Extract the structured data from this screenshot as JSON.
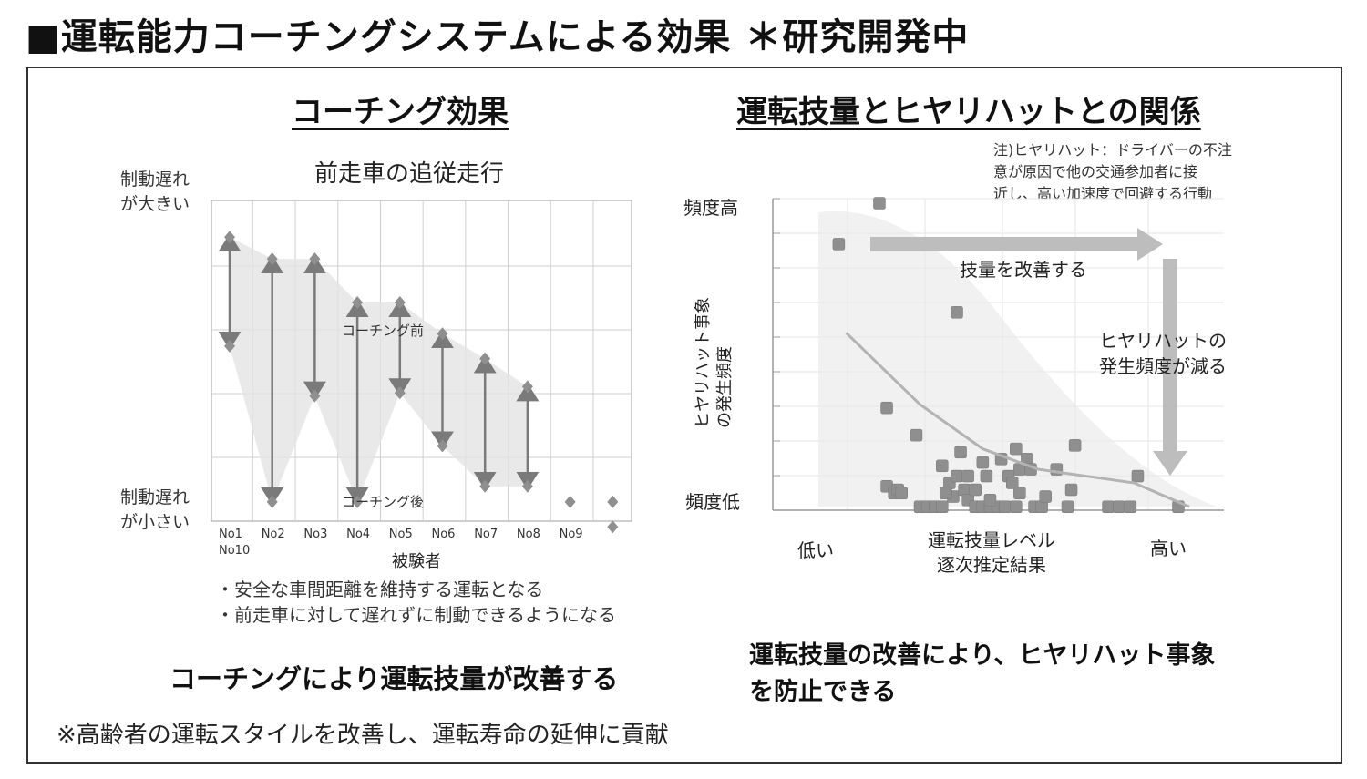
{
  "page_title": "■運転能力コーチングシステムによる効果 ＊研究開発中",
  "left": {
    "section_title": "コーチング効果",
    "chart_title": "前走車の追従走行",
    "y_top_label": [
      "制動遅れ",
      "が大きい"
    ],
    "y_bottom_label": [
      "制動遅れ",
      "が小さい"
    ],
    "before_label": "コーチング前",
    "after_label": "コーチング後",
    "x_axis_title": "被験者",
    "bullets": [
      "・安全な車間距離を維持する運転となる",
      "・前走車に対して遅れずに制動できるようになる"
    ],
    "conclusion": "コーチングにより運転技量が改善する"
  },
  "right": {
    "section_title": "運転技量とヒヤリハットとの関係",
    "note": [
      "注)ヒヤリハット：ドライバーの不注",
      "意が原因で他の交通参加者に接",
      "近し、高い加速度で回避する行動"
    ],
    "y_high": "頻度高",
    "y_low": "頻度低",
    "y_axis_title": [
      "ヒヤリハット事象",
      "の発生頻度"
    ],
    "x_low": "低い",
    "x_high": "高い",
    "x_axis_title": [
      "運転技量レベル",
      "逐次推定結果"
    ],
    "arrow_right_label": "技量を改善する",
    "arrow_down_label": [
      "ヒヤリハットの",
      "発生頻度が減る"
    ],
    "conclusion": [
      "運転技量の改善により、ヒヤリハット事象",
      "を防止できる"
    ]
  },
  "footer": "※高齢者の運転スタイルを改善し、運転寿命の延伸に貢献",
  "colors": {
    "marker": "#8f8f8f",
    "arrow": "#7a7a7a",
    "band": "#e4e4e4",
    "grid": "#cfcfcf",
    "big_arrow": "#bdbdbd",
    "trend": "#b3b3b3"
  },
  "chart_data": [
    {
      "type": "line",
      "title": "前走車の追従走行",
      "xlabel": "被験者",
      "ylabel": "",
      "categories": [
        "No1",
        "No2",
        "No3",
        "No4",
        "No5",
        "No6",
        "No7",
        "No8",
        "No9",
        "No10"
      ],
      "ylim": [
        0,
        10
      ],
      "series": [
        {
          "name": "コーチング前",
          "values": [
            9.0,
            8.3,
            8.3,
            6.9,
            6.9,
            5.9,
            5.1,
            4.2,
            null,
            null
          ]
        },
        {
          "name": "コーチング後",
          "values": [
            5.5,
            0.5,
            3.9,
            0.5,
            4.0,
            2.3,
            1.0,
            1.0,
            0.5,
            0.5
          ]
        }
      ],
      "extra_points": [
        {
          "x": "No10",
          "y": -0.3
        }
      ]
    },
    {
      "type": "scatter",
      "title": "運転技量とヒヤリハットとの関係",
      "xlabel": "運転技量レベル 逐次推定結果",
      "ylabel": "ヒヤリハット事象の発生頻度",
      "xlim": [
        0,
        10
      ],
      "ylim": [
        0,
        9
      ],
      "x_tick_labels": [
        "低い",
        "高い"
      ],
      "y_tick_labels": [
        "頻度低",
        "頻度高"
      ],
      "series": [
        {
          "name": "",
          "points": [
            [
              0.8,
              7.8
            ],
            [
              1.9,
              9.0
            ],
            [
              2.1,
              3.0
            ],
            [
              2.1,
              0.7
            ],
            [
              2.3,
              0.5
            ],
            [
              2.4,
              0.6
            ],
            [
              2.5,
              0.5
            ],
            [
              2.9,
              2.2
            ],
            [
              3.0,
              0.1
            ],
            [
              3.2,
              0.1
            ],
            [
              3.4,
              0.1
            ],
            [
              3.6,
              0.1
            ],
            [
              3.6,
              1.3
            ],
            [
              3.8,
              0.8
            ],
            [
              3.9,
              0.4
            ],
            [
              3.7,
              0.5
            ],
            [
              4.1,
              1.7
            ],
            [
              4.0,
              1.0
            ],
            [
              4.2,
              0.6
            ],
            [
              4.0,
              5.8
            ],
            [
              4.3,
              1.0
            ],
            [
              4.3,
              0.3
            ],
            [
              4.5,
              0.1
            ],
            [
              4.7,
              0.1
            ],
            [
              4.9,
              0.1
            ],
            [
              5.1,
              0.1
            ],
            [
              5.3,
              0.1
            ],
            [
              4.5,
              0.6
            ],
            [
              4.7,
              1.4
            ],
            [
              4.8,
              1.0
            ],
            [
              4.9,
              0.3
            ],
            [
              5.2,
              1.5
            ],
            [
              5.4,
              1.0
            ],
            [
              5.5,
              0.8
            ],
            [
              5.7,
              0.5
            ],
            [
              5.6,
              1.8
            ],
            [
              5.7,
              1.2
            ],
            [
              5.9,
              1.5
            ],
            [
              5.3,
              0.1
            ],
            [
              5.6,
              0.1
            ],
            [
              6.1,
              0.1
            ],
            [
              6.0,
              1.2
            ],
            [
              6.3,
              0.1
            ],
            [
              6.4,
              0.4
            ],
            [
              6.7,
              1.2
            ],
            [
              7.0,
              0.1
            ],
            [
              7.1,
              0.6
            ],
            [
              7.2,
              1.9
            ],
            [
              8.1,
              0.1
            ],
            [
              8.4,
              0.1
            ],
            [
              8.7,
              0.1
            ],
            [
              8.9,
              1.0
            ],
            [
              10.0,
              0.1
            ]
          ]
        },
        {
          "name": "",
          "type": "trend",
          "points": [
            [
              1.0,
              5.2
            ],
            [
              3.0,
              3.1
            ],
            [
              4.7,
              1.8
            ],
            [
              6.2,
              1.2
            ],
            [
              8.8,
              0.8
            ],
            [
              10.3,
              0.1
            ]
          ]
        }
      ]
    }
  ]
}
